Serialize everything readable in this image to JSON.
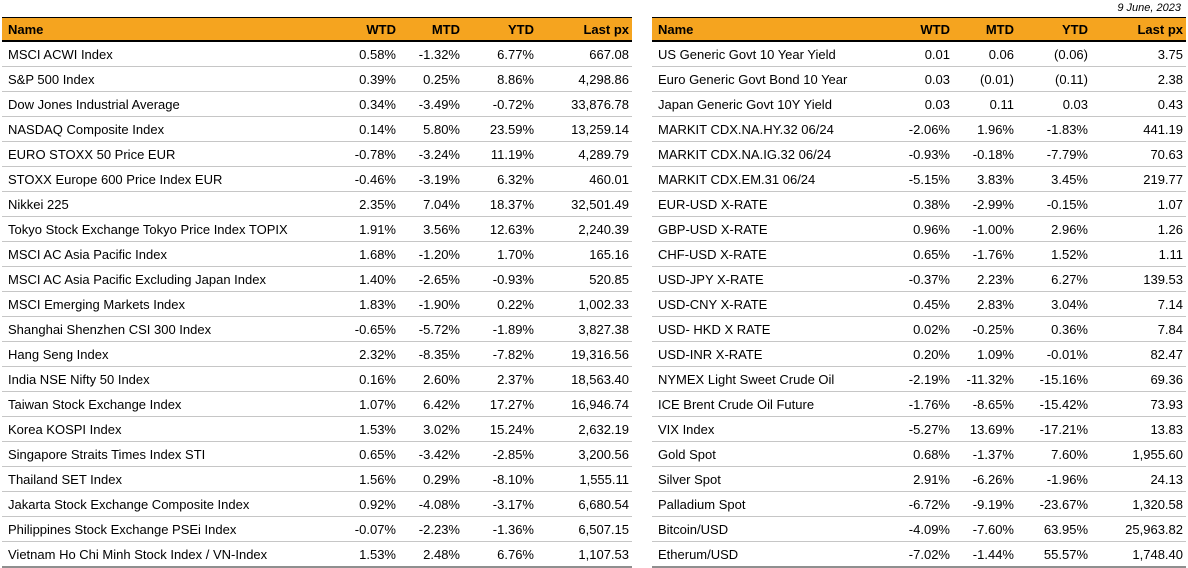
{
  "report_date": "9 June, 2023",
  "colors": {
    "header_bg": "#F5A41F",
    "header_text": "#000000",
    "header_border": "#000000",
    "row_divider": "#C6C6C6",
    "table_bottom_border": "#8F8F8F"
  },
  "columns": [
    "Name",
    "WTD",
    "MTD",
    "YTD",
    "Last px"
  ],
  "tables": [
    {
      "id": "equity-indices",
      "rows": [
        [
          "MSCI ACWI Index",
          "0.58%",
          "-1.32%",
          "6.77%",
          "667.08"
        ],
        [
          "S&P 500 Index",
          "0.39%",
          "0.25%",
          "8.86%",
          "4,298.86"
        ],
        [
          "Dow Jones Industrial Average",
          "0.34%",
          "-3.49%",
          "-0.72%",
          "33,876.78"
        ],
        [
          "NASDAQ Composite Index",
          "0.14%",
          "5.80%",
          "23.59%",
          "13,259.14"
        ],
        [
          "EURO STOXX 50 Price EUR",
          "-0.78%",
          "-3.24%",
          "11.19%",
          "4,289.79"
        ],
        [
          "STOXX Europe 600 Price Index EUR",
          "-0.46%",
          "-3.19%",
          "6.32%",
          "460.01"
        ],
        [
          "Nikkei 225",
          "2.35%",
          "7.04%",
          "18.37%",
          "32,501.49"
        ],
        [
          "Tokyo Stock Exchange Tokyo Price Index TOPIX",
          "1.91%",
          "3.56%",
          "12.63%",
          "2,240.39"
        ],
        [
          "MSCI AC Asia Pacific Index",
          "1.68%",
          "-1.20%",
          "1.70%",
          "165.16"
        ],
        [
          "MSCI AC Asia Pacific Excluding Japan Index",
          "1.40%",
          "-2.65%",
          "-0.93%",
          "520.85"
        ],
        [
          "MSCI Emerging Markets Index",
          "1.83%",
          "-1.90%",
          "0.22%",
          "1,002.33"
        ],
        [
          "Shanghai Shenzhen CSI 300 Index",
          "-0.65%",
          "-5.72%",
          "-1.89%",
          "3,827.38"
        ],
        [
          "Hang Seng Index",
          "2.32%",
          "-8.35%",
          "-7.82%",
          "19,316.56"
        ],
        [
          "India NSE Nifty 50 Index",
          "0.16%",
          "2.60%",
          "2.37%",
          "18,563.40"
        ],
        [
          "Taiwan Stock Exchange  Index",
          "1.07%",
          "6.42%",
          "17.27%",
          "16,946.74"
        ],
        [
          "Korea KOSPI Index",
          "1.53%",
          "3.02%",
          "15.24%",
          "2,632.19"
        ],
        [
          "Singapore Straits Times Index STI",
          "0.65%",
          "-3.42%",
          "-2.85%",
          "3,200.56"
        ],
        [
          "Thailand SET Index",
          "1.56%",
          "0.29%",
          "-8.10%",
          "1,555.11"
        ],
        [
          "Jakarta Stock Exchange Composite Index",
          "0.92%",
          "-4.08%",
          "-3.17%",
          "6,680.54"
        ],
        [
          "Philippines Stock Exchange PSEi Index",
          "-0.07%",
          "-2.23%",
          "-1.36%",
          "6,507.15"
        ],
        [
          "Vietnam Ho Chi Minh Stock Index / VN-Index",
          "1.53%",
          "2.48%",
          "6.76%",
          "1,107.53"
        ]
      ]
    },
    {
      "id": "rates-fx-commodities",
      "rows": [
        [
          "US Generic Govt 10 Year Yield",
          "0.01",
          "0.06",
          "(0.06)",
          "3.75"
        ],
        [
          "Euro Generic Govt Bond 10 Year",
          "0.03",
          "(0.01)",
          "(0.11)",
          "2.38"
        ],
        [
          "Japan Generic Govt 10Y Yield",
          "0.03",
          "0.11",
          "0.03",
          "0.43"
        ],
        [
          "MARKIT CDX.NA.HY.32 06/24",
          "-2.06%",
          "1.96%",
          "-1.83%",
          "441.19"
        ],
        [
          "MARKIT CDX.NA.IG.32 06/24",
          "-0.93%",
          "-0.18%",
          "-7.79%",
          "70.63"
        ],
        [
          "MARKIT CDX.EM.31 06/24",
          "-5.15%",
          "3.83%",
          "3.45%",
          "219.77"
        ],
        [
          "EUR-USD X-RATE",
          "0.38%",
          "-2.99%",
          "-0.15%",
          "1.07"
        ],
        [
          "GBP-USD X-RATE",
          "0.96%",
          "-1.00%",
          "2.96%",
          "1.26"
        ],
        [
          "CHF-USD X-RATE",
          "0.65%",
          "-1.76%",
          "1.52%",
          "1.11"
        ],
        [
          "USD-JPY X-RATE",
          "-0.37%",
          "2.23%",
          "6.27%",
          "139.53"
        ],
        [
          "USD-CNY X-RATE",
          "0.45%",
          "2.83%",
          "3.04%",
          "7.14"
        ],
        [
          "USD- HKD X RATE",
          "0.02%",
          "-0.25%",
          "0.36%",
          "7.84"
        ],
        [
          "USD-INR X-RATE",
          "0.20%",
          "1.09%",
          "-0.01%",
          "82.47"
        ],
        [
          "NYMEX Light Sweet Crude Oil",
          "-2.19%",
          "-11.32%",
          "-15.16%",
          "69.36"
        ],
        [
          "ICE Brent Crude Oil Future",
          "-1.76%",
          "-8.65%",
          "-15.42%",
          "73.93"
        ],
        [
          "VIX Index",
          "-5.27%",
          "13.69%",
          "-17.21%",
          "13.83"
        ],
        [
          "Gold Spot",
          "0.68%",
          "-1.37%",
          "7.60%",
          "1,955.60"
        ],
        [
          "Silver Spot",
          "2.91%",
          "-6.26%",
          "-1.96%",
          "24.13"
        ],
        [
          "Palladium Spot",
          "-6.72%",
          "-9.19%",
          "-23.67%",
          "1,320.58"
        ],
        [
          "Bitcoin/USD",
          "-4.09%",
          "-7.60%",
          "63.95%",
          "25,963.82"
        ],
        [
          "Etherum/USD",
          "-7.02%",
          "-1.44%",
          "55.57%",
          "1,748.40"
        ]
      ]
    }
  ]
}
